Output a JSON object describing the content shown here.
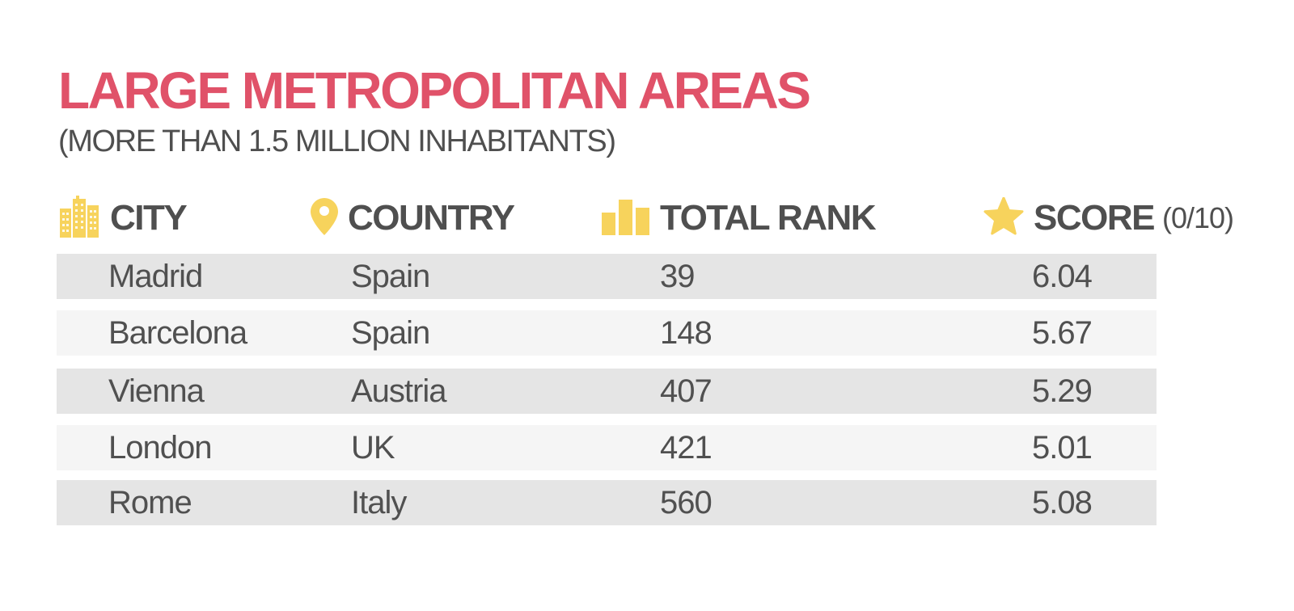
{
  "title": "LARGE METROPOLITAN AREAS",
  "subtitle": "(MORE THAN 1.5 MILLION INHABITANTS)",
  "colors": {
    "title": "#e05269",
    "icon": "#f7d35c",
    "text": "#4f4f4f",
    "row_dark": "#e5e5e5",
    "row_light": "#f5f5f5"
  },
  "columns": [
    {
      "label": "CITY",
      "icon": "buildings-icon"
    },
    {
      "label": "COUNTRY",
      "icon": "location-pin-icon"
    },
    {
      "label": "TOTAL RANK",
      "icon": "bar-chart-icon"
    },
    {
      "label": "SCORE",
      "unit": "(0/10)",
      "icon": "star-icon"
    }
  ],
  "chart_data": {
    "type": "table",
    "title": "LARGE METROPOLITAN AREAS",
    "subtitle": "(MORE THAN 1.5 MILLION INHABITANTS)",
    "columns": [
      "CITY",
      "COUNTRY",
      "TOTAL RANK",
      "SCORE (0/10)"
    ],
    "rows": [
      {
        "city": "Madrid",
        "country": "Spain",
        "rank": "39",
        "score": "6.04"
      },
      {
        "city": "Barcelona",
        "country": "Spain",
        "rank": "148",
        "score": "5.67"
      },
      {
        "city": "Vienna",
        "country": "Austria",
        "rank": "407",
        "score": "5.29"
      },
      {
        "city": "London",
        "country": "UK",
        "rank": "421",
        "score": "5.01"
      },
      {
        "city": "Rome",
        "country": "Italy",
        "rank": "560",
        "score": "5.08"
      }
    ]
  }
}
